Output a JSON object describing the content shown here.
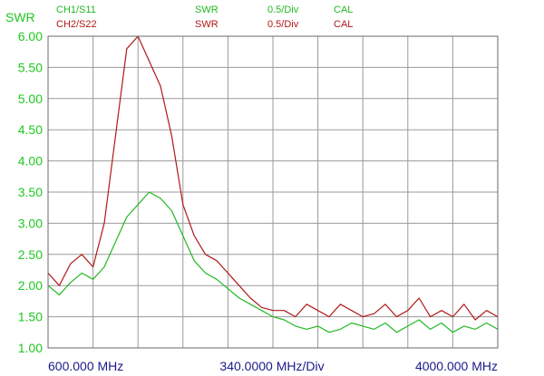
{
  "header": {
    "channels": [
      {
        "name": "CH1/S11",
        "format": "SWR",
        "scale": "0.5/Div",
        "status": "CAL",
        "color": "#22b822"
      },
      {
        "name": "CH2/S22",
        "format": "SWR",
        "scale": "0.5/Div",
        "status": "CAL",
        "color": "#b01818"
      }
    ]
  },
  "colors": {
    "grid": "#9a9a9a",
    "frame": "#6a6a6a",
    "axis_text": "#1fc81f",
    "footer_text": "#1a1a8a"
  },
  "chart_data": {
    "type": "line",
    "ylabel": "SWR",
    "ylim": [
      1.0,
      6.0
    ],
    "y_ticks": [
      "6.00",
      "5.50",
      "5.00",
      "4.50",
      "4.00",
      "3.50",
      "3.00",
      "2.50",
      "2.00",
      "1.50",
      "1.00"
    ],
    "x_divisions": 10,
    "x_start_label": "600.000 MHz",
    "x_div_label": "340.0000 MHz/Div",
    "x_stop_label": "4000.000 MHz",
    "x": [
      0,
      0.25,
      0.5,
      0.75,
      1.0,
      1.25,
      1.5,
      1.75,
      2.0,
      2.25,
      2.5,
      2.75,
      3.0,
      3.25,
      3.5,
      3.75,
      4.0,
      4.25,
      4.5,
      4.75,
      5.0,
      5.25,
      5.5,
      5.75,
      6.0,
      6.25,
      6.5,
      6.75,
      7.0,
      7.25,
      7.5,
      7.75,
      8.0,
      8.25,
      8.5,
      8.75,
      9.0,
      9.25,
      9.5,
      9.75,
      10.0
    ],
    "series": [
      {
        "name": "CH1/S11",
        "color": "#22b822",
        "values": [
          2.0,
          1.85,
          2.05,
          2.2,
          2.1,
          2.3,
          2.7,
          3.1,
          3.3,
          3.5,
          3.4,
          3.2,
          2.8,
          2.4,
          2.2,
          2.1,
          1.95,
          1.8,
          1.7,
          1.6,
          1.5,
          1.45,
          1.35,
          1.3,
          1.35,
          1.25,
          1.3,
          1.4,
          1.35,
          1.3,
          1.4,
          1.25,
          1.35,
          1.45,
          1.3,
          1.4,
          1.25,
          1.35,
          1.3,
          1.4,
          1.3
        ]
      },
      {
        "name": "CH2/S22",
        "color": "#b01818",
        "values": [
          2.2,
          2.0,
          2.35,
          2.5,
          2.3,
          3.0,
          4.4,
          5.8,
          6.0,
          5.6,
          5.2,
          4.4,
          3.3,
          2.8,
          2.5,
          2.4,
          2.2,
          2.0,
          1.8,
          1.65,
          1.6,
          1.6,
          1.5,
          1.7,
          1.6,
          1.5,
          1.7,
          1.6,
          1.5,
          1.55,
          1.7,
          1.5,
          1.6,
          1.8,
          1.5,
          1.6,
          1.5,
          1.7,
          1.45,
          1.6,
          1.5
        ]
      }
    ]
  }
}
